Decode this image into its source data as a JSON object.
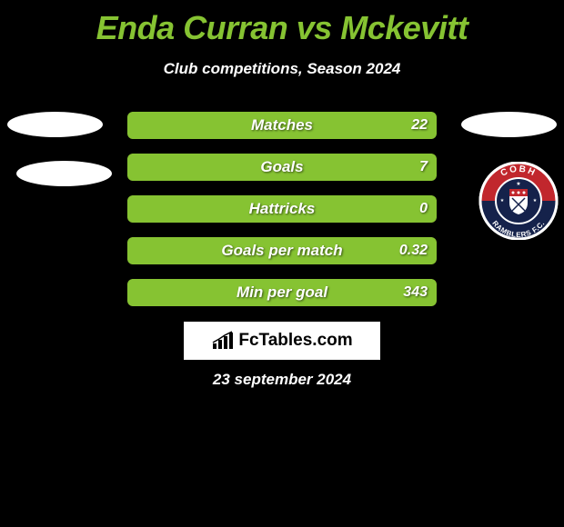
{
  "title": "Enda Curran vs Mckevitt",
  "subtitle": "Club competitions, Season 2024",
  "brand": "FcTables.com",
  "date": "23 september 2024",
  "colors": {
    "accent_green": "#86c332",
    "accent_olive": "#8a9a3a",
    "bar_bg": "#8a9a3a",
    "bar_fill": "#86c332",
    "badge_red": "#c1272d",
    "badge_navy": "#15224b",
    "badge_border": "#ffffff"
  },
  "bars": [
    {
      "label": "Matches",
      "value": "22",
      "fill_pct": 100
    },
    {
      "label": "Goals",
      "value": "7",
      "fill_pct": 100
    },
    {
      "label": "Hattricks",
      "value": "0",
      "fill_pct": 100
    },
    {
      "label": "Goals per match",
      "value": "0.32",
      "fill_pct": 100
    },
    {
      "label": "Min per goal",
      "value": "343",
      "fill_pct": 100
    }
  ],
  "badge": {
    "top_text": "COBH",
    "bottom_text": "RAMBLERS F.C."
  }
}
